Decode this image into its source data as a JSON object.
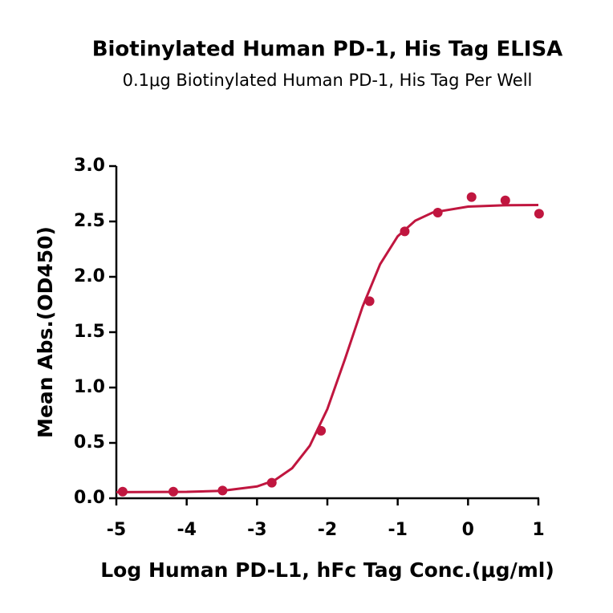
{
  "chart_data": {
    "type": "scatter",
    "title": "Biotinylated Human PD-1, His Tag ELISA",
    "subtitle": "0.1μg Biotinylated Human PD-1, His Tag Per Well",
    "x_label": "Log Human PD-L1, hFc Tag Conc.(μg/ml)",
    "y_label": "Mean Abs.(OD450)",
    "color": "#c0163f",
    "x": [
      -4.91,
      -4.19,
      -3.49,
      -2.79,
      -2.09,
      -1.4,
      -0.9,
      -0.43,
      0.05,
      0.53,
      1.01
    ],
    "values": [
      0.06,
      0.06,
      0.07,
      0.14,
      0.61,
      1.78,
      2.41,
      2.58,
      2.72,
      2.69,
      2.57
    ],
    "curve": {
      "x": [
        -5,
        -4,
        -3.5,
        -3,
        -2.75,
        -2.5,
        -2.25,
        -2,
        -1.75,
        -1.5,
        -1.25,
        -1,
        -0.75,
        -0.5,
        0,
        0.5,
        1
      ],
      "values": [
        0.055,
        0.058,
        0.067,
        0.107,
        0.162,
        0.272,
        0.474,
        0.806,
        1.256,
        1.729,
        2.114,
        2.366,
        2.507,
        2.581,
        2.634,
        2.646,
        2.649
      ]
    },
    "xlim": [
      -5,
      1
    ],
    "xticks": [
      -5,
      -4,
      -3,
      -2,
      -1,
      0,
      1
    ],
    "ylim": [
      0,
      3
    ],
    "yticks": [
      {
        "value": 0,
        "label": "0.0"
      },
      0.5,
      {
        "value": 1,
        "label": "1.0"
      },
      1.5,
      {
        "value": 2,
        "label": "2.0"
      },
      2.5,
      {
        "value": 3,
        "label": "3.0"
      }
    ]
  }
}
